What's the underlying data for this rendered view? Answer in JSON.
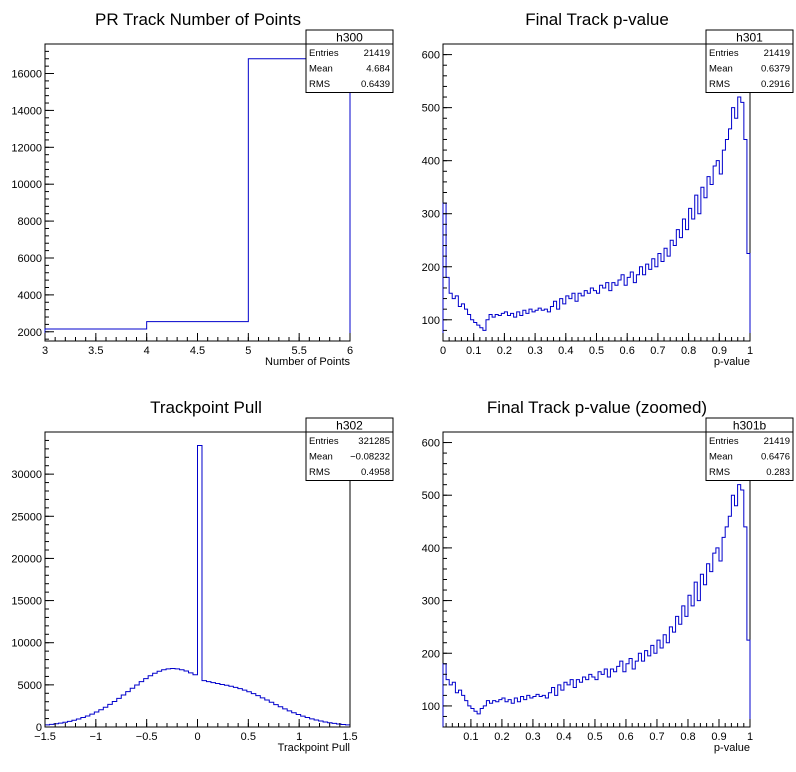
{
  "chart_data": [
    {
      "type": "histogram",
      "title": "PR Track Number of Points",
      "xlabel": "Number of Points",
      "ylabel": "",
      "xlim": [
        3,
        6
      ],
      "ylim": [
        1500,
        17600
      ],
      "xticks": [
        3,
        3.5,
        4,
        4.5,
        5,
        5.5,
        6
      ],
      "yticks": [
        2000,
        4000,
        6000,
        8000,
        10000,
        12000,
        14000,
        16000
      ],
      "bins": {
        "edges": [
          3,
          4,
          5,
          6
        ],
        "values": [
          2150,
          2550,
          16800
        ]
      },
      "color": "#0000cc",
      "stats": {
        "name": "h300",
        "rows": [
          [
            "Entries",
            "21419"
          ],
          [
            "Mean",
            "4.684"
          ],
          [
            "RMS",
            "0.6439"
          ]
        ]
      }
    },
    {
      "type": "histogram",
      "title": "Final Track p-value",
      "xlabel": "p-value",
      "ylabel": "",
      "xlim": [
        0,
        1
      ],
      "ylim": [
        60,
        620
      ],
      "xticks": [
        0,
        0.1,
        0.2,
        0.3,
        0.4,
        0.5,
        0.6,
        0.7,
        0.8,
        0.9,
        1
      ],
      "yticks": [
        100,
        200,
        300,
        400,
        500,
        600
      ],
      "bins": {
        "range": [
          0,
          1
        ],
        "values": [
          320,
          180,
          150,
          140,
          145,
          125,
          130,
          120,
          110,
          100,
          95,
          90,
          85,
          80,
          100,
          110,
          105,
          110,
          108,
          112,
          115,
          108,
          112,
          105,
          115,
          108,
          118,
          112,
          120,
          115,
          118,
          122,
          118,
          120,
          115,
          125,
          135,
          120,
          140,
          130,
          145,
          140,
          150,
          135,
          150,
          145,
          155,
          150,
          160,
          155,
          150,
          165,
          160,
          170,
          155,
          170,
          165,
          175,
          185,
          165,
          180,
          190,
          170,
          185,
          200,
          185,
          205,
          195,
          215,
          200,
          225,
          210,
          235,
          220,
          250,
          240,
          270,
          255,
          290,
          270,
          310,
          290,
          335,
          300,
          350,
          330,
          370,
          355,
          390,
          400,
          375,
          420,
          440,
          460,
          500,
          480,
          520,
          510,
          440,
          225
        ]
      },
      "color": "#0000cc",
      "stats": {
        "name": "h301",
        "rows": [
          [
            "Entries",
            "21419"
          ],
          [
            "Mean",
            "0.6379"
          ],
          [
            "RMS",
            "0.2916"
          ]
        ]
      }
    },
    {
      "type": "histogram",
      "title": "Trackpoint Pull",
      "xlabel": "Trackpoint Pull",
      "ylabel": "",
      "xlim": [
        -1.5,
        1.5
      ],
      "ylim": [
        0,
        35000
      ],
      "xticks": [
        -1.5,
        -1,
        -0.5,
        0,
        0.5,
        1,
        1.5
      ],
      "yticks": [
        0,
        5000,
        10000,
        15000,
        20000,
        25000,
        30000
      ],
      "bins": {
        "range": [
          -1.5,
          1.5
        ],
        "values": [
          250,
          310,
          380,
          460,
          560,
          670,
          800,
          950,
          1120,
          1310,
          1530,
          1780,
          2050,
          2350,
          2680,
          3030,
          3400,
          3790,
          4190,
          4590,
          4990,
          5380,
          5740,
          6080,
          6370,
          6610,
          6790,
          6900,
          6940,
          6900,
          6800,
          6640,
          6420,
          6200,
          33400,
          5500,
          5380,
          5270,
          5160,
          5050,
          4950,
          4830,
          4700,
          4550,
          4380,
          4180,
          3960,
          3720,
          3460,
          3200,
          2930,
          2660,
          2400,
          2150,
          1910,
          1690,
          1480,
          1290,
          1120,
          970,
          830,
          710,
          600,
          510,
          430,
          360,
          300,
          250
        ]
      },
      "color": "#0000cc",
      "stats": {
        "name": "h302",
        "rows": [
          [
            "Entries",
            "321285"
          ],
          [
            "Mean",
            "−0.08232"
          ],
          [
            "RMS",
            "0.4958"
          ]
        ]
      }
    },
    {
      "type": "histogram",
      "title": "Final Track p-value (zoomed)",
      "xlabel": "p-value",
      "ylabel": "",
      "xlim": [
        0.01,
        1
      ],
      "ylim": [
        60,
        620
      ],
      "xticks": [
        0.1,
        0.2,
        0.3,
        0.4,
        0.5,
        0.6,
        0.7,
        0.8,
        0.9,
        1
      ],
      "yticks": [
        100,
        200,
        300,
        400,
        500,
        600
      ],
      "bins": {
        "range": [
          0.01,
          1
        ],
        "values": [
          180,
          150,
          140,
          145,
          125,
          130,
          120,
          110,
          100,
          95,
          90,
          85,
          95,
          100,
          110,
          105,
          110,
          108,
          112,
          115,
          108,
          112,
          105,
          115,
          108,
          118,
          112,
          120,
          115,
          118,
          122,
          118,
          120,
          115,
          125,
          135,
          120,
          140,
          130,
          145,
          140,
          150,
          135,
          150,
          145,
          155,
          150,
          160,
          155,
          150,
          165,
          160,
          170,
          155,
          170,
          165,
          175,
          185,
          165,
          180,
          190,
          170,
          185,
          200,
          185,
          205,
          195,
          215,
          200,
          225,
          210,
          235,
          220,
          250,
          240,
          270,
          255,
          290,
          270,
          310,
          290,
          335,
          300,
          350,
          330,
          370,
          355,
          390,
          400,
          375,
          420,
          440,
          460,
          500,
          480,
          520,
          510,
          440,
          225
        ]
      },
      "color": "#0000cc",
      "stats": {
        "name": "h301b",
        "rows": [
          [
            "Entries",
            "21419"
          ],
          [
            "Mean",
            "0.6476"
          ],
          [
            "RMS",
            "0.283"
          ]
        ]
      }
    }
  ]
}
